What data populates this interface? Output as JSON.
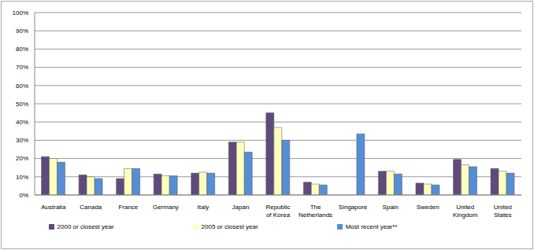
{
  "chart_data": {
    "type": "bar",
    "categories": [
      "Australia",
      "Canada",
      "France",
      "Germany",
      "Italy",
      "Japan",
      "Republic of Korea",
      "The Netherlands",
      "Singapore",
      "Spain",
      "Sweden",
      "United Kingdom",
      "United States"
    ],
    "series": [
      {
        "name": "2000 or closest year",
        "color": "#604a7b",
        "values": [
          21,
          11,
          9,
          11.5,
          12,
          29,
          45,
          7,
          null,
          13,
          6.5,
          19.5,
          14.5
        ]
      },
      {
        "name": "2005 or closest year",
        "color": "#ffffc0",
        "values": [
          20,
          10,
          14.5,
          10.5,
          12.5,
          29,
          37,
          6,
          null,
          13,
          6,
          16.5,
          13
        ]
      },
      {
        "name": "Most recent year**",
        "color": "#558ed5",
        "values": [
          18,
          9,
          14.5,
          10.5,
          12,
          23.5,
          30,
          5.5,
          33.5,
          11.5,
          5.5,
          15.5,
          12
        ]
      }
    ],
    "ylim": [
      0,
      100
    ],
    "yticks": [
      {
        "value": 0,
        "label": "0%"
      },
      {
        "value": 10,
        "label": "10%"
      },
      {
        "value": 20,
        "label": "20%"
      },
      {
        "value": 30,
        "label": "30%"
      },
      {
        "value": 40,
        "label": "40%"
      },
      {
        "value": 50,
        "label": "50%"
      },
      {
        "value": 60,
        "label": "60%"
      },
      {
        "value": 70,
        "label": "70%"
      },
      {
        "value": 80,
        "label": "80%"
      },
      {
        "value": 90,
        "label": "90%"
      },
      {
        "value": 100,
        "label": "100%"
      }
    ],
    "grid": true,
    "legend": "bottom"
  }
}
